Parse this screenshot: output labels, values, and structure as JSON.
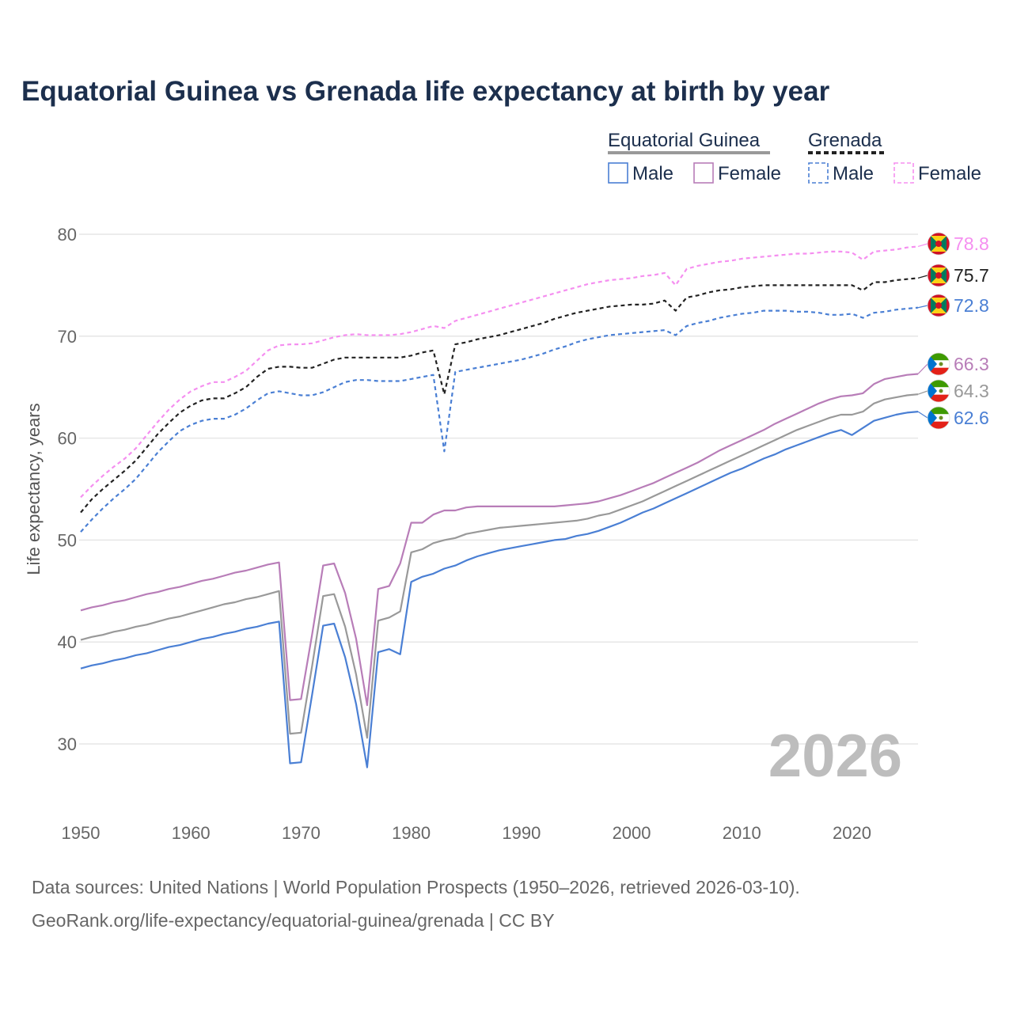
{
  "chart_data": {
    "type": "line",
    "title": "Equatorial Guinea vs Grenada life expectancy at birth by year",
    "xlabel": "",
    "ylabel": "Life expectancy, years",
    "xlim": [
      1950,
      2026
    ],
    "ylim": [
      25,
      82
    ],
    "x_ticks": [
      "1950",
      "1960",
      "1970",
      "1980",
      "1990",
      "2000",
      "2010",
      "2020"
    ],
    "y_ticks": [
      "30",
      "40",
      "50",
      "60",
      "70",
      "80"
    ],
    "current_year_label": "2026",
    "legend": {
      "groups": [
        {
          "name": "Equatorial Guinea",
          "line_style": "solid",
          "color": "#999999"
        },
        {
          "name": "Grenada",
          "line_style": "dashed",
          "color": "#222222"
        }
      ],
      "items": [
        {
          "group": "Equatorial Guinea",
          "label": "Male",
          "color": "#4a7fd4",
          "dashed": false
        },
        {
          "group": "Equatorial Guinea",
          "label": "Female",
          "color": "#b87db8",
          "dashed": false
        },
        {
          "group": "Grenada",
          "label": "Male",
          "color": "#4a7fd4",
          "dashed": true
        },
        {
          "group": "Grenada",
          "label": "Female",
          "color": "#f58ff0",
          "dashed": true
        }
      ]
    },
    "x": [
      1950,
      1951,
      1952,
      1953,
      1954,
      1955,
      1956,
      1957,
      1958,
      1959,
      1960,
      1961,
      1962,
      1963,
      1964,
      1965,
      1966,
      1967,
      1968,
      1969,
      1970,
      1971,
      1972,
      1973,
      1974,
      1975,
      1976,
      1977,
      1978,
      1979,
      1980,
      1981,
      1982,
      1983,
      1984,
      1985,
      1986,
      1987,
      1988,
      1989,
      1990,
      1991,
      1992,
      1993,
      1994,
      1995,
      1996,
      1997,
      1998,
      1999,
      2000,
      2001,
      2002,
      2003,
      2004,
      2005,
      2006,
      2007,
      2008,
      2009,
      2010,
      2011,
      2012,
      2013,
      2014,
      2015,
      2016,
      2017,
      2018,
      2019,
      2020,
      2021,
      2022,
      2023,
      2024,
      2025,
      2026
    ],
    "series": [
      {
        "name": "Grenada Female",
        "country": "Grenada",
        "sex": "Female",
        "color": "#f58ff0",
        "dashed": true,
        "end_label": "78.8",
        "values": [
          54.2,
          55.3,
          56.3,
          57.2,
          58.0,
          59.0,
          60.3,
          61.6,
          62.8,
          63.8,
          64.6,
          65.1,
          65.5,
          65.5,
          66.0,
          66.6,
          67.6,
          68.6,
          69.1,
          69.2,
          69.2,
          69.3,
          69.6,
          69.9,
          70.1,
          70.2,
          70.1,
          70.1,
          70.1,
          70.2,
          70.4,
          70.7,
          71.0,
          70.8,
          71.5,
          71.8,
          72.1,
          72.4,
          72.7,
          73.0,
          73.3,
          73.6,
          73.9,
          74.2,
          74.5,
          74.8,
          75.1,
          75.3,
          75.5,
          75.6,
          75.7,
          75.9,
          76.0,
          76.2,
          75.0,
          76.6,
          76.9,
          77.1,
          77.3,
          77.4,
          77.6,
          77.7,
          77.8,
          77.9,
          78.0,
          78.1,
          78.1,
          78.2,
          78.3,
          78.3,
          78.2,
          77.5,
          78.3,
          78.4,
          78.5,
          78.7,
          78.8
        ]
      },
      {
        "name": "Grenada Total",
        "country": "Grenada",
        "sex": "Total",
        "color": "#222222",
        "dashed": true,
        "end_label": "75.7",
        "values": [
          52.7,
          54.0,
          55.0,
          55.9,
          56.8,
          57.8,
          59.1,
          60.4,
          61.5,
          62.5,
          63.2,
          63.7,
          63.9,
          63.9,
          64.4,
          65.0,
          66.0,
          66.8,
          67.0,
          67.0,
          66.9,
          66.9,
          67.3,
          67.7,
          67.9,
          67.9,
          67.9,
          67.9,
          67.9,
          67.9,
          68.1,
          68.4,
          68.6,
          64.3,
          69.2,
          69.4,
          69.7,
          69.9,
          70.1,
          70.4,
          70.7,
          71.0,
          71.3,
          71.7,
          72.0,
          72.3,
          72.5,
          72.7,
          72.9,
          73.0,
          73.1,
          73.1,
          73.2,
          73.5,
          72.5,
          73.8,
          74.0,
          74.3,
          74.5,
          74.6,
          74.8,
          74.9,
          75.0,
          75.0,
          75.0,
          75.0,
          75.0,
          75.0,
          75.0,
          75.0,
          75.0,
          74.5,
          75.3,
          75.3,
          75.5,
          75.6,
          75.7
        ]
      },
      {
        "name": "Grenada Male",
        "country": "Grenada",
        "sex": "Male",
        "color": "#4a7fd4",
        "dashed": true,
        "end_label": "72.8",
        "values": [
          50.8,
          52.0,
          53.1,
          54.1,
          55.0,
          56.0,
          57.3,
          58.6,
          59.7,
          60.7,
          61.3,
          61.7,
          61.9,
          61.9,
          62.3,
          62.9,
          63.7,
          64.4,
          64.6,
          64.4,
          64.2,
          64.2,
          64.5,
          65.0,
          65.5,
          65.7,
          65.7,
          65.6,
          65.6,
          65.6,
          65.8,
          66.0,
          66.2,
          58.7,
          66.5,
          66.7,
          66.9,
          67.1,
          67.3,
          67.5,
          67.7,
          68.0,
          68.3,
          68.7,
          69.0,
          69.4,
          69.7,
          69.9,
          70.1,
          70.2,
          70.3,
          70.4,
          70.5,
          70.6,
          70.1,
          71.0,
          71.3,
          71.5,
          71.8,
          72.0,
          72.2,
          72.3,
          72.5,
          72.5,
          72.5,
          72.4,
          72.4,
          72.3,
          72.1,
          72.1,
          72.2,
          71.8,
          72.3,
          72.4,
          72.6,
          72.7,
          72.8
        ]
      },
      {
        "name": "Equatorial Guinea Female",
        "country": "Equatorial Guinea",
        "sex": "Female",
        "color": "#b87db8",
        "dashed": false,
        "end_label": "66.3",
        "values": [
          43.1,
          43.4,
          43.6,
          43.9,
          44.1,
          44.4,
          44.7,
          44.9,
          45.2,
          45.4,
          45.7,
          46.0,
          46.2,
          46.5,
          46.8,
          47.0,
          47.3,
          47.6,
          47.8,
          34.3,
          34.4,
          40.7,
          47.5,
          47.7,
          44.8,
          40.3,
          33.8,
          45.2,
          45.5,
          47.7,
          51.7,
          51.7,
          52.5,
          52.9,
          52.9,
          53.2,
          53.3,
          53.3,
          53.3,
          53.3,
          53.3,
          53.3,
          53.3,
          53.3,
          53.4,
          53.5,
          53.6,
          53.8,
          54.1,
          54.4,
          54.8,
          55.2,
          55.6,
          56.1,
          56.6,
          57.1,
          57.6,
          58.2,
          58.8,
          59.3,
          59.8,
          60.3,
          60.8,
          61.4,
          61.9,
          62.4,
          62.9,
          63.4,
          63.8,
          64.1,
          64.2,
          64.4,
          65.3,
          65.8,
          66.0,
          66.2,
          66.3
        ]
      },
      {
        "name": "Equatorial Guinea Total",
        "country": "Equatorial Guinea",
        "sex": "Total",
        "color": "#999999",
        "dashed": false,
        "end_label": "64.3",
        "values": [
          40.2,
          40.5,
          40.7,
          41.0,
          41.2,
          41.5,
          41.7,
          42.0,
          42.3,
          42.5,
          42.8,
          43.1,
          43.4,
          43.7,
          43.9,
          44.2,
          44.4,
          44.7,
          45.0,
          31.0,
          31.1,
          37.6,
          44.5,
          44.7,
          41.5,
          36.8,
          30.6,
          42.1,
          42.4,
          43.0,
          48.8,
          49.1,
          49.7,
          50.0,
          50.2,
          50.6,
          50.8,
          51.0,
          51.2,
          51.3,
          51.4,
          51.5,
          51.6,
          51.7,
          51.8,
          51.9,
          52.1,
          52.4,
          52.6,
          53.0,
          53.4,
          53.8,
          54.3,
          54.8,
          55.3,
          55.8,
          56.3,
          56.8,
          57.3,
          57.8,
          58.3,
          58.8,
          59.3,
          59.8,
          60.3,
          60.8,
          61.2,
          61.6,
          62.0,
          62.3,
          62.3,
          62.6,
          63.4,
          63.8,
          64.0,
          64.2,
          64.3
        ]
      },
      {
        "name": "Equatorial Guinea Male",
        "country": "Equatorial Guinea",
        "sex": "Male",
        "color": "#4a7fd4",
        "dashed": false,
        "end_label": "62.6",
        "values": [
          37.4,
          37.7,
          37.9,
          38.2,
          38.4,
          38.7,
          38.9,
          39.2,
          39.5,
          39.7,
          40.0,
          40.3,
          40.5,
          40.8,
          41.0,
          41.3,
          41.5,
          41.8,
          42.0,
          28.1,
          28.2,
          34.8,
          41.6,
          41.8,
          38.5,
          33.9,
          27.7,
          39.0,
          39.3,
          38.8,
          45.9,
          46.4,
          46.7,
          47.2,
          47.5,
          48.0,
          48.4,
          48.7,
          49.0,
          49.2,
          49.4,
          49.6,
          49.8,
          50.0,
          50.1,
          50.4,
          50.6,
          50.9,
          51.3,
          51.7,
          52.2,
          52.7,
          53.1,
          53.6,
          54.1,
          54.6,
          55.1,
          55.6,
          56.1,
          56.6,
          57.0,
          57.5,
          58.0,
          58.4,
          58.9,
          59.3,
          59.7,
          60.1,
          60.5,
          60.8,
          60.3,
          61.0,
          61.7,
          62.0,
          62.3,
          62.5,
          62.6
        ]
      }
    ]
  },
  "source": {
    "line1": "Data sources: United Nations | World Population Prospects (1950–2026, retrieved 2026-03-10).",
    "line2": "GeoRank.org/life-expectancy/equatorial-guinea/grenada | CC BY"
  }
}
